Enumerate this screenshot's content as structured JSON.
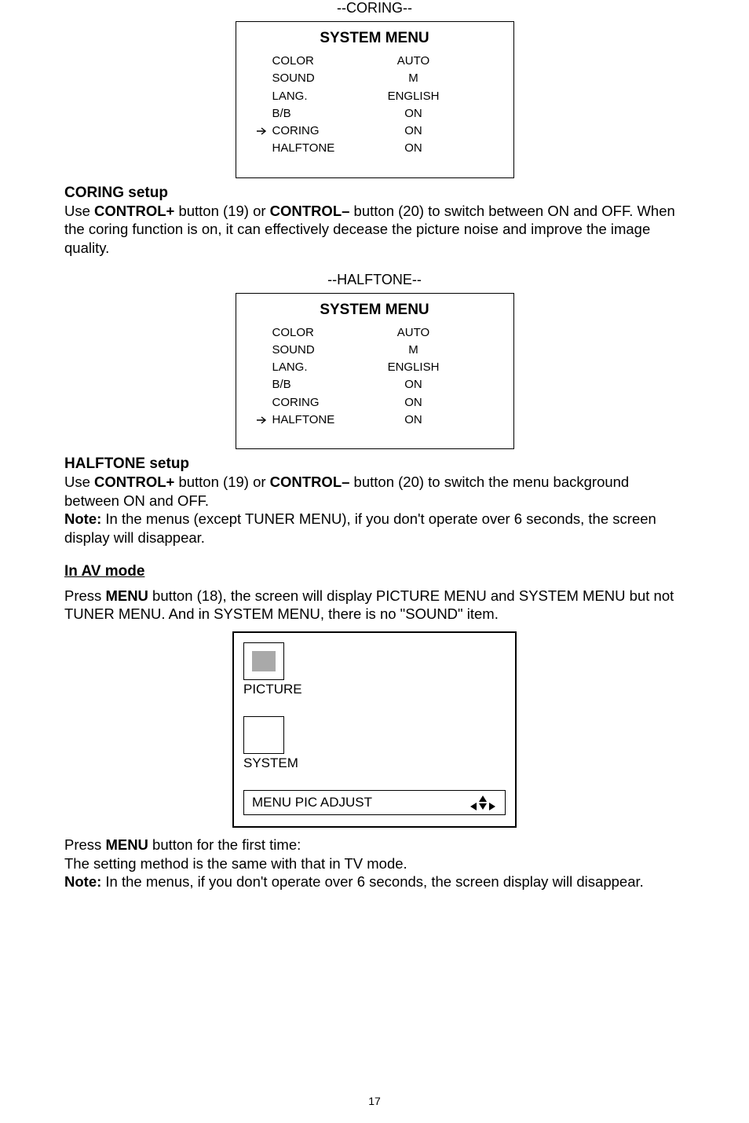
{
  "coring_section": {
    "label": "--CORING--",
    "menu_title": "SYSTEM MENU",
    "rows": [
      {
        "arrow": false,
        "key": "COLOR",
        "val": "AUTO"
      },
      {
        "arrow": false,
        "key": "SOUND",
        "val": "M"
      },
      {
        "arrow": false,
        "key": "LANG.",
        "val": "ENGLISH"
      },
      {
        "arrow": false,
        "key": "B/B",
        "val": "ON"
      },
      {
        "arrow": true,
        "key": "CORING",
        "val": "ON"
      },
      {
        "arrow": false,
        "key": "HALFTONE",
        "val": "ON"
      }
    ]
  },
  "coring_setup": {
    "heading": "CORING setup",
    "body1_a": "Use ",
    "body1_b": "CONTROL+",
    "body1_c": " button (19) or ",
    "body1_d": "CONTROL–",
    "body1_e": " button (20) to switch between ON and OFF. When the coring function is on, it can effectively decease the picture noise and improve the image quality."
  },
  "halftone_section": {
    "label": "--HALFTONE--",
    "menu_title": "SYSTEM MENU",
    "rows": [
      {
        "arrow": false,
        "key": "COLOR",
        "val": "AUTO"
      },
      {
        "arrow": false,
        "key": "SOUND",
        "val": "M"
      },
      {
        "arrow": false,
        "key": "LANG.",
        "val": "ENGLISH"
      },
      {
        "arrow": false,
        "key": "B/B",
        "val": "ON"
      },
      {
        "arrow": false,
        "key": "CORING",
        "val": "ON"
      },
      {
        "arrow": true,
        "key": "HALFTONE",
        "val": "ON"
      }
    ]
  },
  "halftone_setup": {
    "heading": "HALFTONE setup",
    "p1_a": "Use ",
    "p1_b": "CONTROL+",
    "p1_c": " button (19) or ",
    "p1_d": "CONTROL–",
    "p1_e": " button (20) to switch the menu background between ON and OFF.",
    "p2_a": "Note:",
    "p2_b": " In the menus (except TUNER MENU), if you don't operate over 6 seconds, the screen display will disappear."
  },
  "av_mode": {
    "heading": "In AV mode",
    "intro_a": "Press ",
    "intro_b": "MENU",
    "intro_c": " button (18), the screen will display PICTURE MENU and SYSTEM MENU but not TUNER MENU. And in SYSTEM MENU, there is no \"SOUND\" item.",
    "panel": {
      "picture_label": "PICTURE",
      "system_label": "SYSTEM",
      "bottom_label": "MENU PIC ADJUST"
    },
    "after1_a": "Press ",
    "after1_b": "MENU",
    "after1_c": " button for the first time:",
    "after2": "The setting method is the same with that in TV mode.",
    "after3_a": "Note:",
    "after3_b": " In the menus, if you don't operate over 6 seconds, the screen display will disappear."
  },
  "page_number": "17",
  "colors": {
    "selected_icon_fill": "#a9a9a9"
  }
}
